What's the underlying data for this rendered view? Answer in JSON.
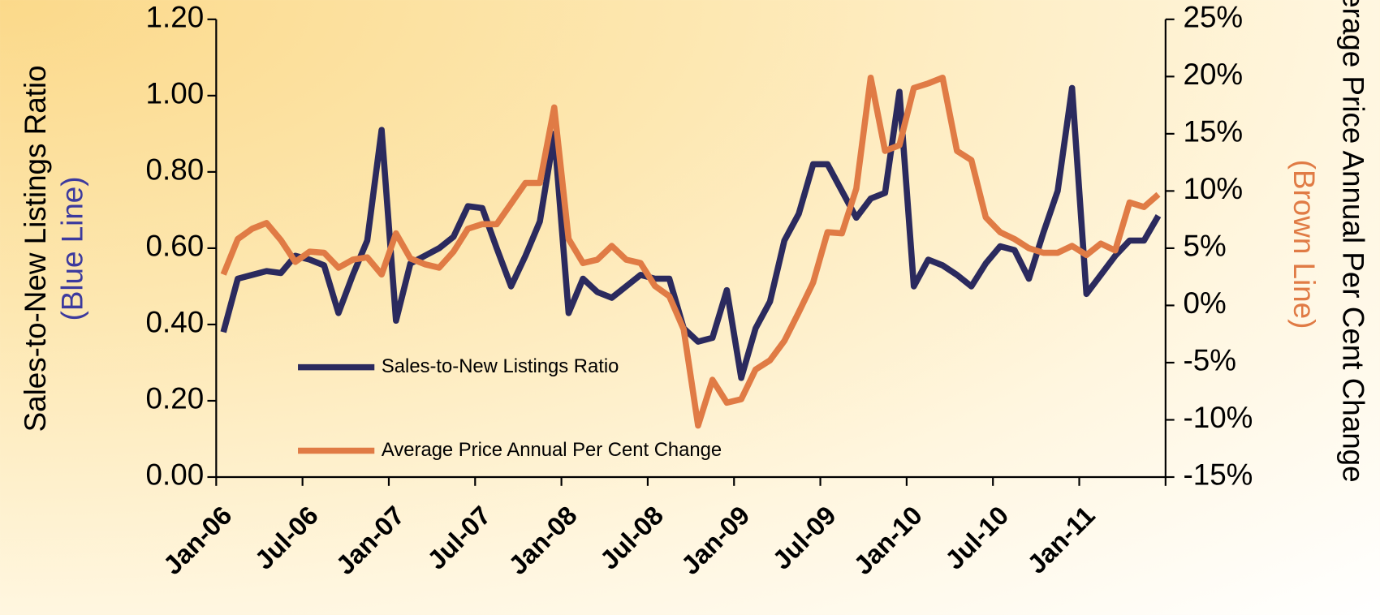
{
  "chart_data": {
    "type": "line",
    "categories": [
      "Jan-06",
      null,
      null,
      null,
      null,
      null,
      "Jul-06",
      null,
      null,
      null,
      null,
      null,
      "Jan-07",
      null,
      null,
      null,
      null,
      null,
      "Jul-07",
      null,
      null,
      null,
      null,
      null,
      "Jan-08",
      null,
      null,
      null,
      null,
      null,
      "Jul-08",
      null,
      null,
      null,
      null,
      null,
      "Jan-09",
      null,
      null,
      null,
      null,
      null,
      "Jul-09",
      null,
      null,
      null,
      null,
      null,
      "Jan-10",
      null,
      null,
      null,
      null,
      null,
      "Jul-10",
      null,
      null,
      null,
      null,
      null,
      "Jan-11",
      null,
      null,
      null,
      null,
      null
    ],
    "y_label": "Sales-to-New Listings Ratio",
    "y_label_note": "(Blue Line)",
    "y2_label": "Average Price Annual Per Cent Change",
    "y2_label_note": "(Brown Line)",
    "ylim": [
      0,
      1.2
    ],
    "yticks": [
      {
        "value": 0,
        "label": "0.00"
      },
      {
        "value": 0.2,
        "label": "0.20"
      },
      {
        "value": 0.4,
        "label": "0.40"
      },
      {
        "value": 0.6,
        "label": "0.60"
      },
      {
        "value": 0.8,
        "label": "0.80"
      },
      {
        "value": 1.0,
        "label": "1.00"
      },
      {
        "value": 1.2,
        "label": "1.20"
      }
    ],
    "y2lim": [
      -15,
      25
    ],
    "y2ticks": [
      {
        "value": -15,
        "label": "-15%"
      },
      {
        "value": -10,
        "label": "-10%"
      },
      {
        "value": -5,
        "label": "-5%"
      },
      {
        "value": 0,
        "label": "0%"
      },
      {
        "value": 5,
        "label": "5%"
      },
      {
        "value": 10,
        "label": "10%"
      },
      {
        "value": 15,
        "label": "15%"
      },
      {
        "value": 20,
        "label": "20%"
      },
      {
        "value": 25,
        "label": "25%"
      }
    ],
    "grid": false,
    "series": [
      {
        "name": "Sales-to-New Listings Ratio",
        "color": "#2b2a5e",
        "values": [
          0.38,
          0.52,
          0.53,
          0.54,
          0.535,
          0.58,
          0.57,
          0.555,
          0.43,
          0.53,
          0.62,
          0.91,
          0.41,
          0.56,
          0.58,
          0.6,
          0.63,
          0.71,
          0.705,
          0.6,
          0.5,
          0.58,
          0.67,
          0.9,
          0.43,
          0.52,
          0.485,
          0.47,
          0.5,
          0.53,
          0.52,
          0.52,
          0.39,
          0.355,
          0.365,
          0.49,
          0.26,
          0.39,
          0.46,
          0.62,
          0.69,
          0.82,
          0.82,
          0.75,
          0.68,
          0.73,
          0.745,
          1.01,
          0.5,
          0.57,
          0.555,
          0.53,
          0.5,
          0.56,
          0.605,
          0.595,
          0.52,
          0.64,
          0.75,
          1.02,
          0.48,
          0.53,
          0.58,
          0.62,
          0.62,
          0.685
        ]
      },
      {
        "name": "Average Price Annual Per Cent Change",
        "color": "#e07b45",
        "axis": "y2",
        "values": [
          2.7,
          5.8,
          6.7,
          7.2,
          5.7,
          3.8,
          4.7,
          4.6,
          3.3,
          4.0,
          4.2,
          2.7,
          6.3,
          4.1,
          3.6,
          3.3,
          4.7,
          6.7,
          7.1,
          7.1,
          8.9,
          10.7,
          10.7,
          17.3,
          5.8,
          3.7,
          4.0,
          5.2,
          4.0,
          3.7,
          1.7,
          0.8,
          -2.1,
          -10.5,
          -6.5,
          -8.5,
          -8.2,
          -5.6,
          -4.8,
          -3.1,
          -0.6,
          2.0,
          6.4,
          6.3,
          10.2,
          19.9,
          13.5,
          14.0,
          19.0,
          19.4,
          19.9,
          13.5,
          12.7,
          7.7,
          6.4,
          5.8,
          5.0,
          4.6,
          4.6,
          5.2,
          4.4,
          5.4,
          4.8,
          9.0,
          8.6,
          9.7
        ]
      }
    ]
  }
}
